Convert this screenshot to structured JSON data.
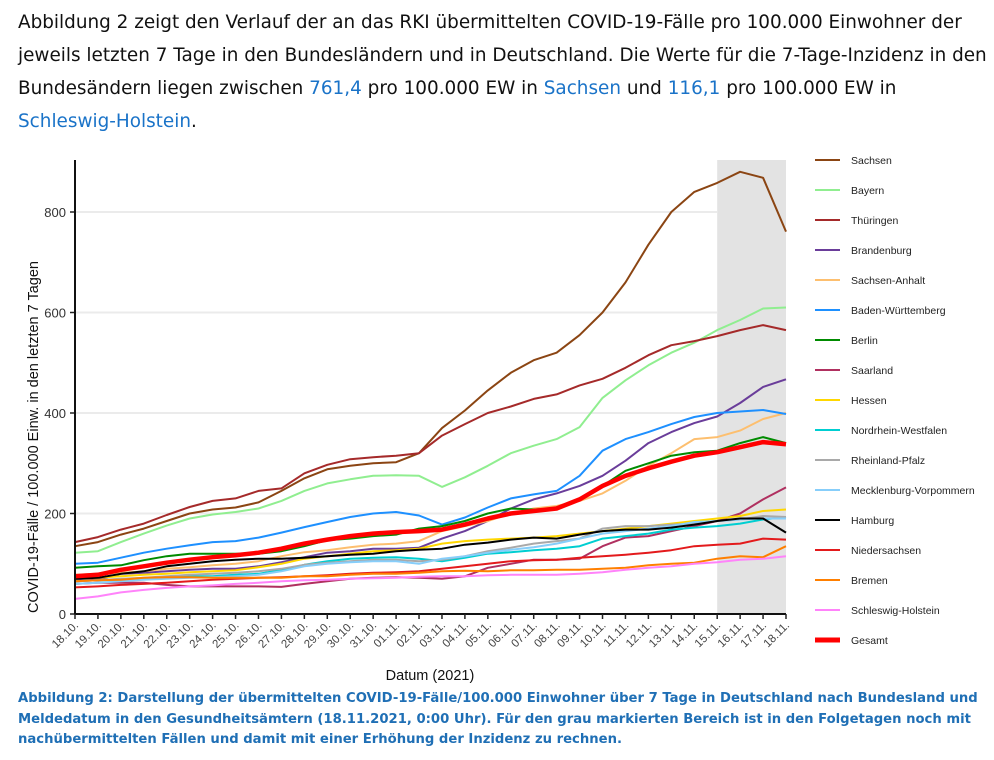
{
  "intro": {
    "part1": "Abbildung 2 zeigt den Verlauf der an das RKI übermittelten COVID-19-Fälle pro 100.000 Einwohner der jeweils letzten 7 Tage in den Bundesländern und in Deutschland. Die Werte für die 7-Tage-Inzidenz in den Bundesändern liegen zwischen ",
    "max_value": "761,4",
    "part2": " pro 100.000 EW in ",
    "max_state": "Sachsen",
    "part3": " und ",
    "min_value": "116,1",
    "part4": " pro 100.000 EW in ",
    "min_state": "Schleswig-Holstein",
    "part5": "."
  },
  "caption": "Abbildung 2: Darstellung der übermittelten COVID-19-Fälle/100.000 Einwohner über 7 Tage in Deutschland nach Bundesland und Meldedatum in den Gesundheitsämtern (18.11.2021, 0:00 Uhr). Für den grau markierten Bereich ist in den Folgetagen noch mit nachübermittelten Fällen und damit mit einer Erhöhung der Inzidenz zu rechnen.",
  "chart_data": {
    "type": "line",
    "xlabel": "Datum (2021)",
    "ylabel": "COVID-19-Fälle / 100.000 Einw. in den letzten 7 Tagen",
    "ylim": [
      0,
      900
    ],
    "yticks": [
      "0",
      "200",
      "400",
      "600",
      "800"
    ],
    "grid": "horizontal",
    "legend_position": "right",
    "shaded_region": {
      "from": "15.11.",
      "to": "18.11.",
      "color": "#e3e3e3"
    },
    "x": [
      "18.10.",
      "19.10.",
      "20.10.",
      "21.10.",
      "22.10.",
      "23.10.",
      "24.10.",
      "25.10.",
      "26.10.",
      "27.10.",
      "28.10.",
      "29.10.",
      "30.10.",
      "31.10.",
      "01.11.",
      "02.11.",
      "03.11.",
      "04.11.",
      "05.11.",
      "06.11.",
      "07.11.",
      "08.11.",
      "09.11.",
      "10.11.",
      "11.11.",
      "12.11.",
      "13.11.",
      "14.11.",
      "15.11.",
      "16.11.",
      "17.11.",
      "18.11."
    ],
    "series": [
      {
        "name": "Sachsen",
        "color": "#8B4513",
        "values": [
          135,
          143,
          158,
          170,
          185,
          200,
          208,
          212,
          222,
          245,
          270,
          288,
          295,
          300,
          302,
          320,
          370,
          405,
          445,
          480,
          505,
          520,
          555,
          600,
          660,
          735,
          800,
          840,
          858,
          880,
          868,
          761
        ]
      },
      {
        "name": "Bayern",
        "color": "#90EE90",
        "values": [
          122,
          125,
          143,
          160,
          176,
          190,
          198,
          203,
          210,
          225,
          245,
          260,
          268,
          275,
          276,
          275,
          253,
          272,
          295,
          320,
          335,
          348,
          372,
          430,
          465,
          495,
          520,
          540,
          565,
          585,
          608,
          610
        ]
      },
      {
        "name": "Thüringen",
        "color": "#A52A2A",
        "values": [
          143,
          153,
          168,
          180,
          197,
          213,
          225,
          230,
          245,
          250,
          280,
          297,
          308,
          312,
          315,
          320,
          355,
          378,
          400,
          413,
          428,
          437,
          455,
          468,
          490,
          515,
          535,
          543,
          553,
          565,
          575,
          565
        ]
      },
      {
        "name": "Brandenburg",
        "color": "#6A3D9A",
        "values": [
          68,
          68,
          80,
          82,
          85,
          88,
          90,
          90,
          95,
          103,
          113,
          122,
          125,
          130,
          130,
          132,
          150,
          165,
          185,
          210,
          228,
          240,
          255,
          275,
          305,
          340,
          362,
          380,
          393,
          420,
          452,
          467
        ]
      },
      {
        "name": "Sachsen-Anhalt",
        "color": "#FDBF6F",
        "values": [
          78,
          80,
          82,
          85,
          90,
          93,
          97,
          100,
          105,
          115,
          123,
          127,
          133,
          138,
          140,
          145,
          165,
          175,
          185,
          200,
          210,
          215,
          225,
          240,
          265,
          295,
          320,
          348,
          352,
          365,
          388,
          400
        ]
      },
      {
        "name": "Baden-Württemberg",
        "color": "#1E90FF",
        "values": [
          100,
          102,
          112,
          122,
          130,
          137,
          143,
          145,
          152,
          162,
          173,
          183,
          193,
          200,
          203,
          196,
          178,
          192,
          212,
          230,
          238,
          245,
          275,
          325,
          348,
          362,
          378,
          392,
          400,
          403,
          406,
          398
        ]
      },
      {
        "name": "Berlin",
        "color": "#008B00",
        "values": [
          92,
          95,
          97,
          107,
          115,
          120,
          120,
          120,
          120,
          125,
          135,
          147,
          150,
          155,
          158,
          170,
          175,
          185,
          200,
          210,
          208,
          210,
          230,
          255,
          285,
          300,
          315,
          322,
          325,
          340,
          352,
          340
        ]
      },
      {
        "name": "Saarland",
        "color": "#B03060",
        "values": [
          60,
          62,
          62,
          62,
          58,
          55,
          55,
          55,
          55,
          54,
          60,
          65,
          70,
          72,
          73,
          72,
          70,
          75,
          92,
          100,
          108,
          108,
          110,
          135,
          152,
          155,
          165,
          175,
          185,
          200,
          228,
          252
        ]
      },
      {
        "name": "Hessen",
        "color": "#FFD700",
        "values": [
          70,
          72,
          75,
          78,
          80,
          83,
          85,
          87,
          93,
          100,
          110,
          115,
          120,
          125,
          127,
          130,
          140,
          145,
          148,
          150,
          152,
          155,
          160,
          165,
          170,
          175,
          180,
          185,
          190,
          195,
          205,
          208
        ]
      },
      {
        "name": "Nordrhein-Westfalen",
        "color": "#00CED1",
        "values": [
          65,
          67,
          68,
          70,
          72,
          75,
          75,
          78,
          80,
          88,
          98,
          105,
          110,
          112,
          113,
          110,
          105,
          112,
          120,
          123,
          127,
          130,
          135,
          150,
          155,
          160,
          168,
          172,
          175,
          180,
          188,
          193
        ]
      },
      {
        "name": "Rheinland-Pfalz",
        "color": "#A9A9A9",
        "values": [
          65,
          67,
          70,
          72,
          75,
          78,
          80,
          82,
          85,
          90,
          98,
          102,
          105,
          108,
          108,
          105,
          108,
          115,
          125,
          132,
          140,
          145,
          150,
          170,
          175,
          175,
          178,
          180,
          185,
          188,
          195,
          193
        ]
      },
      {
        "name": "Mecklenburg-Vorpommern",
        "color": "#87CEFA",
        "values": [
          60,
          62,
          65,
          68,
          70,
          72,
          73,
          75,
          78,
          85,
          95,
          100,
          103,
          105,
          105,
          100,
          110,
          115,
          122,
          128,
          133,
          140,
          150,
          160,
          165,
          170,
          175,
          183,
          185,
          188,
          190,
          190
        ]
      },
      {
        "name": "Hamburg",
        "color": "#000000",
        "values": [
          70,
          72,
          80,
          85,
          95,
          100,
          105,
          108,
          110,
          110,
          112,
          115,
          118,
          120,
          125,
          128,
          130,
          138,
          142,
          148,
          152,
          150,
          158,
          165,
          168,
          168,
          172,
          178,
          185,
          190,
          190,
          162
        ]
      },
      {
        "name": "Niedersachsen",
        "color": "#E31A1C",
        "values": [
          53,
          55,
          58,
          60,
          62,
          65,
          68,
          70,
          72,
          73,
          75,
          77,
          80,
          82,
          83,
          85,
          90,
          95,
          100,
          105,
          107,
          108,
          112,
          115,
          118,
          122,
          127,
          135,
          138,
          140,
          150,
          148
        ]
      },
      {
        "name": "Bremen",
        "color": "#FF7F00",
        "values": [
          65,
          67,
          68,
          72,
          73,
          73,
          72,
          72,
          72,
          72,
          75,
          75,
          78,
          80,
          80,
          82,
          85,
          86,
          85,
          87,
          87,
          88,
          88,
          90,
          92,
          97,
          100,
          102,
          110,
          115,
          113,
          135
        ]
      },
      {
        "name": "Schleswig-Holstein",
        "color": "#FF83FA",
        "values": [
          30,
          35,
          43,
          48,
          52,
          55,
          57,
          60,
          62,
          65,
          67,
          68,
          70,
          71,
          72,
          74,
          75,
          75,
          77,
          78,
          78,
          78,
          80,
          83,
          88,
          92,
          95,
          100,
          103,
          108,
          110,
          115
        ]
      },
      {
        "name": "Gesamt",
        "color": "#FF0000",
        "values": [
          75,
          78,
          88,
          95,
          102,
          108,
          113,
          117,
          122,
          130,
          140,
          148,
          155,
          160,
          163,
          165,
          168,
          178,
          190,
          200,
          205,
          210,
          228,
          255,
          275,
          290,
          303,
          315,
          322,
          332,
          342,
          338
        ]
      }
    ]
  }
}
